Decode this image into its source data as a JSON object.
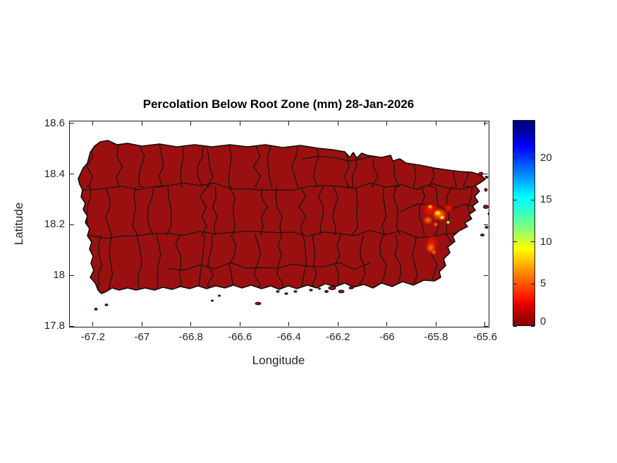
{
  "figure": {
    "title": "Percolation Below Root Zone (mm) 28-Jan-2026",
    "xlabel": "Longitude",
    "ylabel": "Latitude"
  },
  "chart_data": {
    "type": "heatmap",
    "title": "Percolation Below Root Zone (mm) 28-Jan-2026",
    "subtitle": "",
    "xlabel": "Longitude",
    "ylabel": "Latitude",
    "region": "Puerto Rico municipalities map",
    "xlim": [
      -67.297,
      -65.588
    ],
    "ylim": [
      17.8,
      18.611
    ],
    "x_ticks": [
      {
        "label": "-67.2",
        "value": -67.2
      },
      {
        "label": "-67",
        "value": -67.0
      },
      {
        "label": "-66.8",
        "value": -66.8
      },
      {
        "label": "-66.6",
        "value": -66.6
      },
      {
        "label": "-66.4",
        "value": -66.4
      },
      {
        "label": "-66.2",
        "value": -66.2
      },
      {
        "label": "-66",
        "value": -66.0
      },
      {
        "label": "-65.8",
        "value": -65.8
      },
      {
        "label": "-65.6",
        "value": -65.6
      }
    ],
    "y_ticks": [
      {
        "label": "18.6",
        "value": 18.6
      },
      {
        "label": "18.4",
        "value": 18.4
      },
      {
        "label": "18.2",
        "value": 18.2
      },
      {
        "label": "18",
        "value": 18.0
      },
      {
        "label": "17.8",
        "value": 17.8
      }
    ],
    "colorbar": {
      "colormap": "jet-reversed (dark red low, dark blue high)",
      "range": [
        0,
        24.5
      ],
      "ticks": [
        {
          "label": "0",
          "value": 0
        },
        {
          "label": "5",
          "value": 5
        },
        {
          "label": "10",
          "value": 10
        },
        {
          "label": "15",
          "value": 15
        },
        {
          "label": "20",
          "value": 20
        }
      ]
    },
    "base_value_mm": 0,
    "base_fill_color": "#9a1010",
    "grid": false,
    "legend": "colorbar right",
    "hotspots": [
      {
        "lon": -65.79,
        "lat": 18.24,
        "approx_peak_mm": 10,
        "note": "yellow-orange cluster near Fajardo/Ceiba"
      },
      {
        "lon": -65.76,
        "lat": 18.2,
        "approx_peak_mm": 13,
        "note": "single yellow-green point"
      },
      {
        "lon": -65.83,
        "lat": 18.12,
        "approx_peak_mm": 5,
        "note": "orange-red patch near Naguabo"
      }
    ]
  }
}
